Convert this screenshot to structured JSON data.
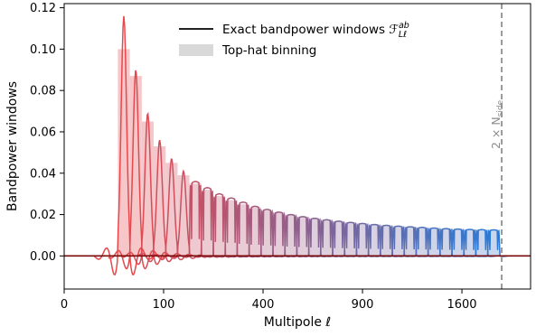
{
  "chart_data": {
    "type": "line",
    "xlabel": "Multipole ℓ",
    "ylabel": "Bandpower windows",
    "xscale": "sqrt",
    "xlim": [
      0,
      2200
    ],
    "ylim": [
      -0.016,
      0.122
    ],
    "xticks": [
      {
        "value": 0,
        "label": "0"
      },
      {
        "value": 100,
        "label": "100"
      },
      {
        "value": 400,
        "label": "400"
      },
      {
        "value": 900,
        "label": "900"
      },
      {
        "value": 1600,
        "label": "1600"
      }
    ],
    "yticks": [
      {
        "value": 0.0,
        "label": "0.00"
      },
      {
        "value": 0.02,
        "label": "0.02"
      },
      {
        "value": 0.04,
        "label": "0.04"
      },
      {
        "value": 0.06,
        "label": "0.06"
      },
      {
        "value": 0.08,
        "label": "0.08"
      },
      {
        "value": 0.1,
        "label": "0.10"
      },
      {
        "value": 0.12,
        "label": "0.12"
      }
    ],
    "grid": false,
    "legend_position": "top-center",
    "legend": [
      {
        "label": "Exact bandpower windows ℱ",
        "sup": "ab",
        "sub": "Lℓ",
        "style": "line",
        "color": "#222222"
      },
      {
        "label": "Top-hat binning",
        "style": "patch",
        "color": "#d9d9d9"
      }
    ],
    "color_start": "#e8484c",
    "color_end": "#2b7bd6",
    "tophat_fill_start": "#f7c6c8",
    "tophat_fill_end": "#c9d7ee",
    "bins": {
      "edges_sqrt": [
        5.4,
        6.6,
        7.8,
        9.0,
        10.2,
        11.4,
        12.6,
        13.8,
        15.0,
        16.2,
        17.4,
        18.6,
        19.8,
        21.0,
        22.2,
        23.4,
        24.6,
        25.8,
        27.0,
        28.2,
        29.4,
        30.6,
        31.8,
        33.0,
        34.2,
        35.4,
        36.6,
        37.8,
        39.0,
        40.2,
        41.4,
        42.6,
        43.8
      ],
      "tophat_values": [
        0.1,
        0.087,
        0.065,
        0.053,
        0.045,
        0.039,
        0.035,
        0.032,
        0.029,
        0.027,
        0.025,
        0.0235,
        0.022,
        0.021,
        0.02,
        0.019,
        0.0182,
        0.0175,
        0.0168,
        0.0162,
        0.0157,
        0.0152,
        0.0148,
        0.0144,
        0.0141,
        0.0138,
        0.0135,
        0.0132,
        0.013,
        0.0128,
        0.0127,
        0.0126
      ],
      "window_peaks": [
        0.116,
        0.09,
        0.069,
        0.056,
        0.047,
        0.041,
        0.036,
        0.033,
        0.03,
        0.028,
        0.026,
        0.024,
        0.0225,
        0.0212,
        0.02,
        0.019,
        0.0182,
        0.0175,
        0.0168,
        0.0162,
        0.0157,
        0.0152,
        0.0148,
        0.0144,
        0.0141,
        0.0138,
        0.0135,
        0.0132,
        0.013,
        0.0128,
        0.0127,
        0.0126
      ]
    },
    "annotation": {
      "x": 1936,
      "text": "2 × N",
      "sub": "side",
      "color": "#8c8c8c",
      "style": "dashed vertical line"
    }
  }
}
